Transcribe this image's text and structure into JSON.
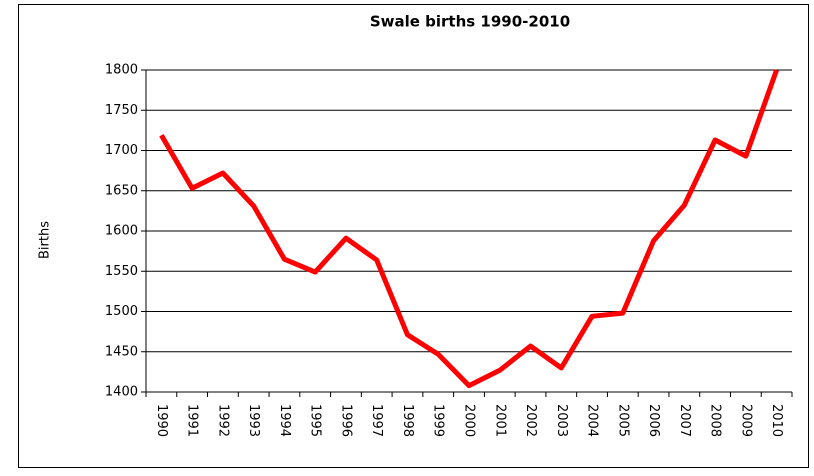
{
  "chart_data": {
    "type": "line",
    "title": "Swale births 1990-2010",
    "y_label": "Births",
    "categories": [
      "1990",
      "1991",
      "1992",
      "1993",
      "1994",
      "1995",
      "1996",
      "1997",
      "1998",
      "1999",
      "2000",
      "2001",
      "2002",
      "2003",
      "2004",
      "2005",
      "2006",
      "2007",
      "2008",
      "2009",
      "2010"
    ],
    "series": [
      {
        "name": "Births",
        "color": "#ff0000",
        "values": [
          1719,
          1653,
          1672,
          1631,
          1565,
          1549,
          1591,
          1564,
          1471,
          1447,
          1408,
          1427,
          1457,
          1430,
          1494,
          1498,
          1588,
          1632,
          1713,
          1693,
          1800
        ]
      }
    ],
    "ylim": [
      1400,
      1800
    ],
    "yticks": [
      1400,
      1450,
      1500,
      1550,
      1600,
      1650,
      1700,
      1750,
      1800
    ],
    "grid": true
  }
}
